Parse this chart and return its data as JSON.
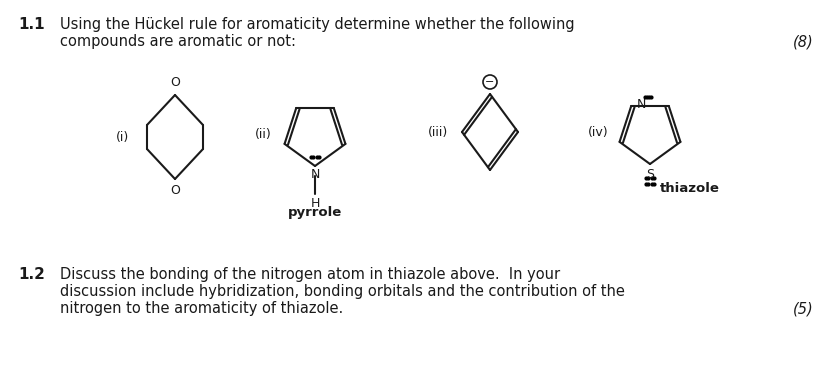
{
  "bg_color": "#ffffff",
  "text_color": "#1a1a1a",
  "line_color": "#1a1a1a",
  "title_num": "1.1",
  "title_text_line1": "Using the Hückel rule for aromaticity determine whether the following",
  "title_text_line2": "compounds are aromatic or not:",
  "title_marks": "(8)",
  "q2_num": "1.2",
  "q2_text_line1": "Discuss the bonding of the nitrogen atom in thiazole above.  In your",
  "q2_text_line2": "discussion include hybridization, bonding orbitals and the contribution of the",
  "q2_text_line3": "nitrogen to the aromaticity of thiazole.",
  "q2_marks": "(5)",
  "label_i": "(i)",
  "label_ii": "(ii)",
  "label_iii": "(iii)",
  "label_iv": "(iv)",
  "label_pyrrole": "pyrrole",
  "label_H": "H",
  "label_thiazole": "thiazole",
  "font_size_main": 10.5,
  "font_size_num": 11,
  "font_size_label": 9,
  "font_size_struct": 8.5
}
